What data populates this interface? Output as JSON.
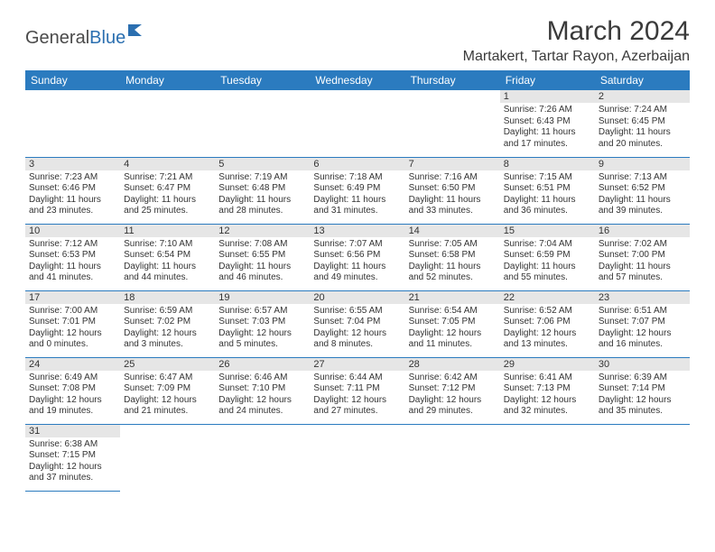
{
  "logo": {
    "text1": "General",
    "text2": "Blue"
  },
  "title": "March 2024",
  "location": "Martakert, Tartar Rayon, Azerbaijan",
  "colors": {
    "header_bg": "#2b7bbf",
    "header_text": "#ffffff",
    "daynum_bg": "#e6e6e6",
    "border": "#2b7bbf",
    "logo_accent": "#2b6fb0"
  },
  "day_headers": [
    "Sunday",
    "Monday",
    "Tuesday",
    "Wednesday",
    "Thursday",
    "Friday",
    "Saturday"
  ],
  "weeks": [
    [
      {
        "day": "",
        "sunrise": "",
        "sunset": "",
        "daylight": ""
      },
      {
        "day": "",
        "sunrise": "",
        "sunset": "",
        "daylight": ""
      },
      {
        "day": "",
        "sunrise": "",
        "sunset": "",
        "daylight": ""
      },
      {
        "day": "",
        "sunrise": "",
        "sunset": "",
        "daylight": ""
      },
      {
        "day": "",
        "sunrise": "",
        "sunset": "",
        "daylight": ""
      },
      {
        "day": "1",
        "sunrise": "Sunrise: 7:26 AM",
        "sunset": "Sunset: 6:43 PM",
        "daylight": "Daylight: 11 hours and 17 minutes."
      },
      {
        "day": "2",
        "sunrise": "Sunrise: 7:24 AM",
        "sunset": "Sunset: 6:45 PM",
        "daylight": "Daylight: 11 hours and 20 minutes."
      }
    ],
    [
      {
        "day": "3",
        "sunrise": "Sunrise: 7:23 AM",
        "sunset": "Sunset: 6:46 PM",
        "daylight": "Daylight: 11 hours and 23 minutes."
      },
      {
        "day": "4",
        "sunrise": "Sunrise: 7:21 AM",
        "sunset": "Sunset: 6:47 PM",
        "daylight": "Daylight: 11 hours and 25 minutes."
      },
      {
        "day": "5",
        "sunrise": "Sunrise: 7:19 AM",
        "sunset": "Sunset: 6:48 PM",
        "daylight": "Daylight: 11 hours and 28 minutes."
      },
      {
        "day": "6",
        "sunrise": "Sunrise: 7:18 AM",
        "sunset": "Sunset: 6:49 PM",
        "daylight": "Daylight: 11 hours and 31 minutes."
      },
      {
        "day": "7",
        "sunrise": "Sunrise: 7:16 AM",
        "sunset": "Sunset: 6:50 PM",
        "daylight": "Daylight: 11 hours and 33 minutes."
      },
      {
        "day": "8",
        "sunrise": "Sunrise: 7:15 AM",
        "sunset": "Sunset: 6:51 PM",
        "daylight": "Daylight: 11 hours and 36 minutes."
      },
      {
        "day": "9",
        "sunrise": "Sunrise: 7:13 AM",
        "sunset": "Sunset: 6:52 PM",
        "daylight": "Daylight: 11 hours and 39 minutes."
      }
    ],
    [
      {
        "day": "10",
        "sunrise": "Sunrise: 7:12 AM",
        "sunset": "Sunset: 6:53 PM",
        "daylight": "Daylight: 11 hours and 41 minutes."
      },
      {
        "day": "11",
        "sunrise": "Sunrise: 7:10 AM",
        "sunset": "Sunset: 6:54 PM",
        "daylight": "Daylight: 11 hours and 44 minutes."
      },
      {
        "day": "12",
        "sunrise": "Sunrise: 7:08 AM",
        "sunset": "Sunset: 6:55 PM",
        "daylight": "Daylight: 11 hours and 46 minutes."
      },
      {
        "day": "13",
        "sunrise": "Sunrise: 7:07 AM",
        "sunset": "Sunset: 6:56 PM",
        "daylight": "Daylight: 11 hours and 49 minutes."
      },
      {
        "day": "14",
        "sunrise": "Sunrise: 7:05 AM",
        "sunset": "Sunset: 6:58 PM",
        "daylight": "Daylight: 11 hours and 52 minutes."
      },
      {
        "day": "15",
        "sunrise": "Sunrise: 7:04 AM",
        "sunset": "Sunset: 6:59 PM",
        "daylight": "Daylight: 11 hours and 55 minutes."
      },
      {
        "day": "16",
        "sunrise": "Sunrise: 7:02 AM",
        "sunset": "Sunset: 7:00 PM",
        "daylight": "Daylight: 11 hours and 57 minutes."
      }
    ],
    [
      {
        "day": "17",
        "sunrise": "Sunrise: 7:00 AM",
        "sunset": "Sunset: 7:01 PM",
        "daylight": "Daylight: 12 hours and 0 minutes."
      },
      {
        "day": "18",
        "sunrise": "Sunrise: 6:59 AM",
        "sunset": "Sunset: 7:02 PM",
        "daylight": "Daylight: 12 hours and 3 minutes."
      },
      {
        "day": "19",
        "sunrise": "Sunrise: 6:57 AM",
        "sunset": "Sunset: 7:03 PM",
        "daylight": "Daylight: 12 hours and 5 minutes."
      },
      {
        "day": "20",
        "sunrise": "Sunrise: 6:55 AM",
        "sunset": "Sunset: 7:04 PM",
        "daylight": "Daylight: 12 hours and 8 minutes."
      },
      {
        "day": "21",
        "sunrise": "Sunrise: 6:54 AM",
        "sunset": "Sunset: 7:05 PM",
        "daylight": "Daylight: 12 hours and 11 minutes."
      },
      {
        "day": "22",
        "sunrise": "Sunrise: 6:52 AM",
        "sunset": "Sunset: 7:06 PM",
        "daylight": "Daylight: 12 hours and 13 minutes."
      },
      {
        "day": "23",
        "sunrise": "Sunrise: 6:51 AM",
        "sunset": "Sunset: 7:07 PM",
        "daylight": "Daylight: 12 hours and 16 minutes."
      }
    ],
    [
      {
        "day": "24",
        "sunrise": "Sunrise: 6:49 AM",
        "sunset": "Sunset: 7:08 PM",
        "daylight": "Daylight: 12 hours and 19 minutes."
      },
      {
        "day": "25",
        "sunrise": "Sunrise: 6:47 AM",
        "sunset": "Sunset: 7:09 PM",
        "daylight": "Daylight: 12 hours and 21 minutes."
      },
      {
        "day": "26",
        "sunrise": "Sunrise: 6:46 AM",
        "sunset": "Sunset: 7:10 PM",
        "daylight": "Daylight: 12 hours and 24 minutes."
      },
      {
        "day": "27",
        "sunrise": "Sunrise: 6:44 AM",
        "sunset": "Sunset: 7:11 PM",
        "daylight": "Daylight: 12 hours and 27 minutes."
      },
      {
        "day": "28",
        "sunrise": "Sunrise: 6:42 AM",
        "sunset": "Sunset: 7:12 PM",
        "daylight": "Daylight: 12 hours and 29 minutes."
      },
      {
        "day": "29",
        "sunrise": "Sunrise: 6:41 AM",
        "sunset": "Sunset: 7:13 PM",
        "daylight": "Daylight: 12 hours and 32 minutes."
      },
      {
        "day": "30",
        "sunrise": "Sunrise: 6:39 AM",
        "sunset": "Sunset: 7:14 PM",
        "daylight": "Daylight: 12 hours and 35 minutes."
      }
    ],
    [
      {
        "day": "31",
        "sunrise": "Sunrise: 6:38 AM",
        "sunset": "Sunset: 7:15 PM",
        "daylight": "Daylight: 12 hours and 37 minutes."
      },
      {
        "day": "",
        "sunrise": "",
        "sunset": "",
        "daylight": ""
      },
      {
        "day": "",
        "sunrise": "",
        "sunset": "",
        "daylight": ""
      },
      {
        "day": "",
        "sunrise": "",
        "sunset": "",
        "daylight": ""
      },
      {
        "day": "",
        "sunrise": "",
        "sunset": "",
        "daylight": ""
      },
      {
        "day": "",
        "sunrise": "",
        "sunset": "",
        "daylight": ""
      },
      {
        "day": "",
        "sunrise": "",
        "sunset": "",
        "daylight": ""
      }
    ]
  ]
}
